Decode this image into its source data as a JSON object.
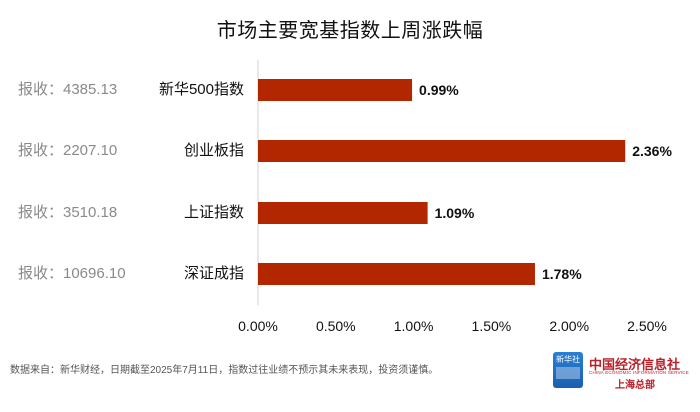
{
  "chart_data": {
    "type": "bar",
    "orientation": "horizontal",
    "title": "市场主要宽基指数上周涨跌幅",
    "categories": [
      "新华500指数",
      "创业板指",
      "上证指数",
      "深证成指"
    ],
    "values": [
      0.99,
      2.36,
      1.09,
      1.78
    ],
    "value_labels": [
      "0.99%",
      "2.36%",
      "1.09%",
      "1.78%"
    ],
    "close_labels": [
      "报收：4385.13",
      "报收：2207.10",
      "报收：3510.18",
      "报收：10696.10"
    ],
    "xlim": [
      0,
      2.5
    ],
    "x_ticks": [
      "0.00%",
      "0.50%",
      "1.00%",
      "1.50%",
      "2.00%",
      "2.50%"
    ],
    "bar_color": "#b22600",
    "grid": false
  },
  "footer": {
    "note": "数据来自：新华财经，日期截至2025年7月11日，指数过往业绩不预示其未来表现，投资须谨慎。"
  },
  "brand": {
    "logo_text": "新华社",
    "name": "中国经济信息社",
    "sub": "CHINA ECONOMIC INFORMATION SERVICE",
    "region": "上海总部"
  }
}
